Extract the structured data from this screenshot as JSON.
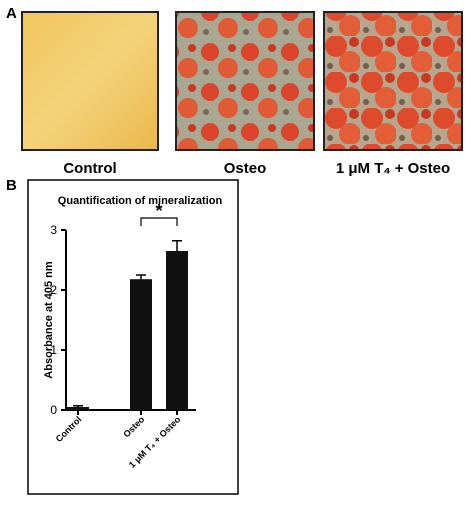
{
  "panels": {
    "a": "A",
    "b": "B"
  },
  "images": [
    {
      "caption": "Control"
    },
    {
      "caption": "Osteo"
    },
    {
      "caption": "1 μM T₄ + Osteo"
    }
  ],
  "chart_data": {
    "type": "bar",
    "title": "Quantification of mineralization",
    "y_label": "Absorbance at 405 nm",
    "categories": [
      "Control",
      "Osteo",
      "1 μM T₄ + Osteo"
    ],
    "values": [
      0.05,
      2.18,
      2.65
    ],
    "errors": [
      0.02,
      0.07,
      0.17
    ],
    "color": "#111111",
    "ylim": [
      0,
      3
    ],
    "yticks": [
      0,
      1,
      2,
      3
    ],
    "annotation": "*"
  }
}
